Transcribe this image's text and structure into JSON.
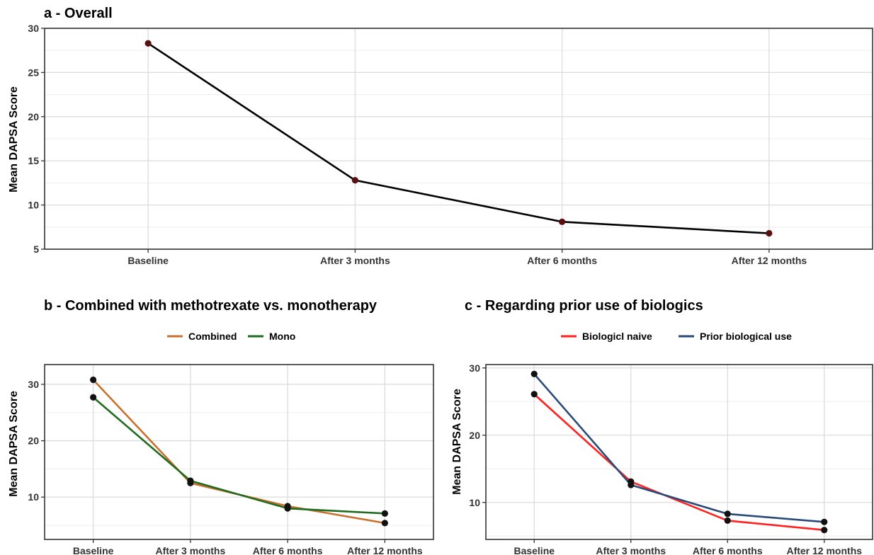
{
  "chart_data": [
    {
      "type": "line",
      "title": "a - Overall",
      "ylabel": "Mean DAPSA Score",
      "xlabel": "",
      "categories": [
        "Baseline",
        "After 3 months",
        "After 6 months",
        "After 12 months"
      ],
      "ylim": [
        5,
        30
      ],
      "yticks": [
        5,
        10,
        15,
        20,
        25,
        30
      ],
      "grid": true,
      "legend": "none",
      "series": [
        {
          "values": [
            28.3,
            12.8,
            8.1,
            6.8
          ],
          "color": "#000000",
          "point_color": "#5a1010"
        }
      ]
    },
    {
      "type": "line",
      "title": "b - Combined with methotrexate vs. monotherapy",
      "ylabel": "Mean DAPSA Score",
      "xlabel": "",
      "categories": [
        "Baseline",
        "After 3 months",
        "After 6 months",
        "After 12 months"
      ],
      "ylim": [
        2.5,
        33.5
      ],
      "yticks": [
        10,
        20,
        30
      ],
      "grid": true,
      "legend": "top",
      "series": [
        {
          "name": "Combined",
          "values": [
            30.8,
            12.5,
            8.4,
            5.4
          ],
          "color": "#c8702e",
          "point_color": "#111111"
        },
        {
          "name": "Mono",
          "values": [
            27.7,
            12.9,
            8.0,
            7.1
          ],
          "color": "#1f6b1f",
          "point_color": "#111111"
        }
      ]
    },
    {
      "type": "line",
      "title": "c - Regarding prior use of biologics",
      "ylabel": "Mean DAPSA Score",
      "xlabel": "",
      "categories": [
        "Baseline",
        "After 3 months",
        "After 6 months",
        "After 12 months"
      ],
      "ylim": [
        4.5,
        30.5
      ],
      "yticks": [
        10,
        20,
        30
      ],
      "grid": true,
      "legend": "top",
      "series": [
        {
          "name": "Biologicl naive",
          "values": [
            26.1,
            13.1,
            7.3,
            5.9
          ],
          "color": "#ff2020",
          "point_color": "#111111"
        },
        {
          "name": "Prior biological use",
          "values": [
            29.1,
            12.6,
            8.3,
            7.1
          ],
          "color": "#2a4a7a",
          "point_color": "#111111"
        }
      ]
    }
  ]
}
